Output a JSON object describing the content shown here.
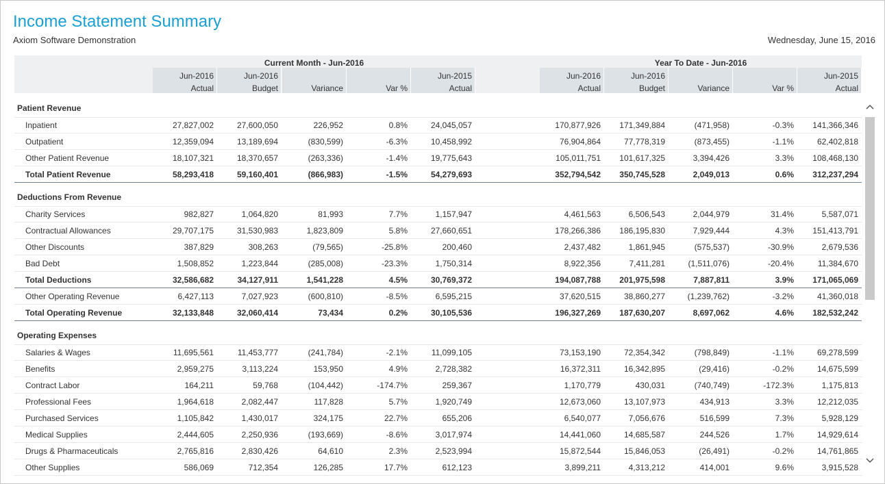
{
  "header": {
    "title": "Income Statement Summary",
    "subtitle": "Axiom Software Demonstration",
    "date": "Wednesday, June 15, 2016"
  },
  "table": {
    "groups": [
      {
        "title": "Current Month - Jun-2016",
        "columns": [
          {
            "top": "Jun-2016",
            "bottom": "Actual"
          },
          {
            "top": "Jun-2016",
            "bottom": "Budget"
          },
          {
            "top": "",
            "bottom": "Variance"
          },
          {
            "top": "",
            "bottom": "Var %"
          },
          {
            "top": "Jun-2015",
            "bottom": "Actual"
          }
        ]
      },
      {
        "title": "Year To Date - Jun-2016",
        "columns": [
          {
            "top": "Jun-2016",
            "bottom": "Actual"
          },
          {
            "top": "Jun-2016",
            "bottom": "Budget"
          },
          {
            "top": "",
            "bottom": "Variance"
          },
          {
            "top": "",
            "bottom": "Var %"
          },
          {
            "top": "Jun-2015",
            "bottom": "Actual"
          }
        ]
      }
    ],
    "sections": [
      {
        "title": "Patient Revenue",
        "rows": [
          {
            "label": "Inpatient",
            "values": [
              "27,827,002",
              "27,600,050",
              "226,952",
              "0.8%",
              "24,045,057",
              "170,877,926",
              "171,349,884",
              "(471,958)",
              "-0.3%",
              "141,366,346"
            ]
          },
          {
            "label": "Outpatient",
            "values": [
              "12,359,094",
              "13,189,694",
              "(830,599)",
              "-6.3%",
              "10,458,992",
              "76,904,864",
              "77,778,319",
              "(873,455)",
              "-1.1%",
              "62,402,818"
            ]
          },
          {
            "label": "Other Patient Revenue",
            "values": [
              "18,107,321",
              "18,370,657",
              "(263,336)",
              "-1.4%",
              "19,775,643",
              "105,011,751",
              "101,617,325",
              "3,394,426",
              "3.3%",
              "108,468,130"
            ]
          },
          {
            "label": "Total Patient Revenue",
            "total": true,
            "values": [
              "58,293,418",
              "59,160,401",
              "(866,983)",
              "-1.5%",
              "54,279,693",
              "352,794,542",
              "350,745,528",
              "2,049,013",
              "0.6%",
              "312,237,294"
            ]
          }
        ]
      },
      {
        "title": "Deductions From Revenue",
        "rows": [
          {
            "label": "Charity Services",
            "values": [
              "982,827",
              "1,064,820",
              "81,993",
              "7.7%",
              "1,157,947",
              "4,461,563",
              "6,506,543",
              "2,044,979",
              "31.4%",
              "5,587,071"
            ]
          },
          {
            "label": "Contractual Allowances",
            "values": [
              "29,707,175",
              "31,530,983",
              "1,823,809",
              "5.8%",
              "27,660,651",
              "178,266,386",
              "186,195,830",
              "7,929,444",
              "4.3%",
              "151,413,791"
            ]
          },
          {
            "label": "Other Discounts",
            "values": [
              "387,829",
              "308,263",
              "(79,565)",
              "-25.8%",
              "200,460",
              "2,437,482",
              "1,861,945",
              "(575,537)",
              "-30.9%",
              "2,679,536"
            ]
          },
          {
            "label": "Bad Debt",
            "values": [
              "1,508,852",
              "1,223,844",
              "(285,008)",
              "-23.3%",
              "1,750,314",
              "8,922,356",
              "7,411,281",
              "(1,511,076)",
              "-20.4%",
              "11,384,670"
            ]
          },
          {
            "label": "Total Deductions",
            "total": true,
            "values": [
              "32,586,682",
              "34,127,911",
              "1,541,228",
              "4.5%",
              "30,769,372",
              "194,087,788",
              "201,975,598",
              "7,887,811",
              "3.9%",
              "171,065,069"
            ]
          },
          {
            "label": "Other Operating Revenue",
            "values": [
              "6,427,113",
              "7,027,923",
              "(600,810)",
              "-8.5%",
              "6,595,215",
              "37,620,515",
              "38,860,277",
              "(1,239,762)",
              "-3.2%",
              "41,360,018"
            ]
          },
          {
            "label": "Total Operating Revenue",
            "total": true,
            "values": [
              "32,133,848",
              "32,060,414",
              "73,434",
              "0.2%",
              "30,105,536",
              "196,327,269",
              "187,630,207",
              "8,697,062",
              "4.6%",
              "182,532,242"
            ]
          }
        ]
      },
      {
        "title": "Operating Expenses",
        "rows": [
          {
            "label": "Salaries & Wages",
            "values": [
              "11,695,561",
              "11,453,777",
              "(241,784)",
              "-2.1%",
              "11,099,105",
              "73,153,190",
              "72,354,342",
              "(798,849)",
              "-1.1%",
              "69,278,599"
            ]
          },
          {
            "label": "Benefits",
            "values": [
              "2,959,275",
              "3,113,224",
              "153,950",
              "4.9%",
              "2,728,382",
              "16,372,311",
              "16,342,895",
              "(29,416)",
              "-0.2%",
              "14,675,599"
            ]
          },
          {
            "label": "Contract Labor",
            "values": [
              "164,211",
              "59,768",
              "(104,442)",
              "-174.7%",
              "259,367",
              "1,170,779",
              "430,031",
              "(740,749)",
              "-172.3%",
              "1,175,813"
            ]
          },
          {
            "label": "Professional Fees",
            "values": [
              "1,964,618",
              "2,082,447",
              "117,828",
              "5.7%",
              "1,920,749",
              "12,673,060",
              "13,107,973",
              "434,913",
              "3.3%",
              "12,212,035"
            ]
          },
          {
            "label": "Purchased Services",
            "values": [
              "1,105,842",
              "1,430,017",
              "324,175",
              "22.7%",
              "655,206",
              "6,540,077",
              "7,056,676",
              "516,599",
              "7.3%",
              "5,928,129"
            ]
          },
          {
            "label": "Medical Supplies",
            "values": [
              "2,444,605",
              "2,250,936",
              "(193,669)",
              "-8.6%",
              "3,017,974",
              "14,441,060",
              "14,685,587",
              "244,526",
              "1.7%",
              "14,929,614"
            ]
          },
          {
            "label": "Drugs & Pharmaceuticals",
            "values": [
              "2,765,816",
              "2,830,426",
              "64,610",
              "2.3%",
              "2,523,994",
              "15,872,544",
              "15,846,053",
              "(26,491)",
              "-0.2%",
              "14,761,865"
            ]
          },
          {
            "label": "Other Supplies",
            "values": [
              "586,069",
              "712,354",
              "126,285",
              "17.7%",
              "612,123",
              "3,899,211",
              "4,313,212",
              "414,001",
              "9.6%",
              "3,915,528"
            ]
          }
        ]
      }
    ]
  }
}
